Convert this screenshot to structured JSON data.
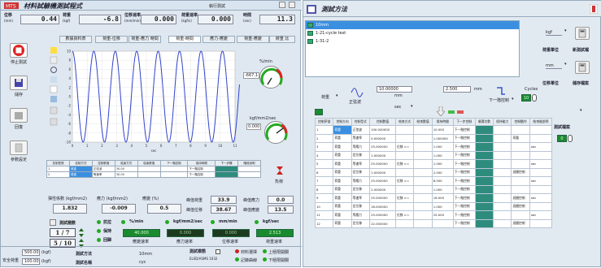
{
  "left": {
    "title": "材料試驗機測試程式",
    "machine_label": "執行測試",
    "readouts": [
      {
        "label": "位移",
        "unit": "(mm)",
        "value": "0.44"
      },
      {
        "label": "荷重",
        "unit": "(kgf)",
        "value": "-6.8"
      },
      {
        "label": "位移速率",
        "unit": "(mm/min)",
        "value": "0.000"
      },
      {
        "label": "荷重速率",
        "unit": "(kgf/s)",
        "value": "0.000"
      },
      {
        "label": "時間",
        "unit": "(sec)",
        "value": "11.3"
      }
    ],
    "side_buttons": [
      {
        "label": "停止測試"
      },
      {
        "label": "儲存"
      },
      {
        "label": "回復"
      },
      {
        "label": "參數設定"
      }
    ],
    "tabs": [
      "數據資料表",
      "荷重-位移",
      "荷重-應力 時間",
      "荷重-時間",
      "應力-應變",
      "荷重-應變",
      "荷重 比"
    ],
    "chart_data": {
      "type": "line",
      "xlabel": "sec",
      "xticks": [
        "0",
        "1",
        "2",
        "3",
        "4",
        "5",
        "6",
        "7",
        "8",
        "9",
        "10",
        "11"
      ],
      "yticks": [
        "-10",
        "-8",
        "-6",
        "-4",
        "-2",
        "0",
        "2",
        "4",
        "6",
        "8",
        "10"
      ],
      "series": [
        {
          "amplitude": 10,
          "period_sec": 1.45,
          "x_max": 11.3
        }
      ],
      "color": "#3344cc"
    },
    "gauge1": {
      "unit": "%/min",
      "value": "-667.1"
    },
    "gauge2": {
      "unit": "kgf/mm2/sec",
      "value": "0.000"
    },
    "mini_table": {
      "headers": [
        "控制型態",
        "控制方式",
        "控制數值",
        "結束方式",
        "結束數值",
        "下一階控制",
        "保持時間",
        "下一步驟",
        "階段說明"
      ],
      "rows": [
        [
          "1",
          "荷重",
          "正弦波",
          "30.00",
          "",
          "",
          "下一階控制",
          "",
          ""
        ],
        [
          "2",
          "荷重",
          "等速率",
          "30.00",
          "",
          "",
          "下一階控制",
          "",
          ""
        ]
      ]
    },
    "load_btn": "負荷",
    "stats1": [
      {
        "label": "彈性係數 (kgf/mm2)",
        "value": "1.832"
      },
      {
        "label": "應力 (kgf/mm2)",
        "value": "-0.009"
      },
      {
        "label": "應變 (%)",
        "value": "0.5"
      }
    ],
    "stats2": [
      {
        "label": "峰值荷重",
        "value": "33.9"
      },
      {
        "label": "峰值位移",
        "value": "38.67"
      }
    ],
    "stats3": [
      {
        "label": "峰值應力",
        "value": "0.0"
      },
      {
        "label": "峰值應變",
        "value": "13.5"
      }
    ],
    "cycle": {
      "label": "測試圈數",
      "current": "1",
      "total": "7",
      "step": "5",
      "step_total": "10"
    },
    "indicators": [
      {
        "label": "抗拉"
      },
      {
        "label": "保持"
      },
      {
        "label": "回歸"
      }
    ],
    "bottom_meters": [
      {
        "unit": "%/min",
        "value": "40.000",
        "caption": "應變速率"
      },
      {
        "unit": "kgf/mm2/sec",
        "value": "0.000",
        "caption": "應力速率"
      },
      {
        "unit": "mm/min",
        "value": "0.000",
        "caption": "位移速率"
      },
      {
        "unit": "kgf/sec",
        "value": "2.513",
        "caption": "荷重速率"
      }
    ],
    "footer": {
      "safe_label": "安全荷重",
      "field1_value": "500.00",
      "field1_unit": "(kgf)",
      "field2_value": "100.00",
      "field2_unit": "(kgf)",
      "method_label": "測試方法",
      "method_value": "測試名稱",
      "mm_label": "10mm",
      "speed_label": "cyc",
      "mode_label": "測試模態",
      "mode_value": "ELSD/ASMS 1032",
      "opt1": "材料選擇",
      "opt2": "記錄曲線",
      "opt3": "上極限開關",
      "opt4": "下極限開關"
    }
  },
  "right": {
    "title": "測試方法",
    "methods": [
      "10mm",
      "1-21-cycle test",
      "1-31-2"
    ],
    "unit_force": "kgf",
    "unit_force_label": "荷重單位",
    "unit_disp": "mm",
    "unit_disp_label": "位移單位",
    "btn_new": "新測試檔",
    "btn_save": "儲存檔案",
    "ctrl": {
      "load_label": "荷重",
      "wave_label": "正弦波",
      "field_a": "10.00000",
      "unit_a": "mm",
      "unit_sec": "sec",
      "field_b": "2.500",
      "unit_b": "mm",
      "next_label": "下一階控制",
      "cycles_label": "Cycles",
      "cycles_value": "10"
    },
    "side_label": "測試檔案",
    "side_value": "0",
    "table": {
      "headers": [
        "控制序號",
        "控制方向",
        "控制型式",
        "控制數值",
        "結束方式",
        "結束數值",
        "保持時間",
        "下一步控制",
        "循環次數",
        "保持能力",
        "控制動作",
        "結束後說明"
      ],
      "rows": [
        [
          "1",
          "荷重",
          "正弦波",
          "100.000000",
          "",
          "",
          "10.000",
          "下一階控制",
          "",
          "",
          "",
          ""
        ],
        [
          "2",
          "荷重",
          "等速率",
          "0.000000",
          "",
          "",
          "1.000000",
          "下一階控制",
          "",
          "",
          "荷載",
          ""
        ],
        [
          "3",
          "荷重",
          "等應力",
          "25.000000",
          "位移 >=",
          "",
          "1.000",
          "下一階控制",
          "",
          "",
          "",
          "sec"
        ],
        [
          "4",
          "荷重",
          "定位移",
          "1.000000",
          "",
          "",
          "1.000",
          "下一階控制",
          "",
          "",
          "",
          ""
        ],
        [
          "5",
          "荷重",
          "等速率",
          "25.000000",
          "位移 >=",
          "",
          "1.000",
          "下一階控制",
          "",
          "",
          "",
          "sec"
        ],
        [
          "6",
          "荷重",
          "定位移",
          "1.000000",
          "",
          "",
          "2.000",
          "下一階控制",
          "",
          "",
          "迴圈控制",
          ""
        ],
        [
          "7",
          "荷重",
          "等應力",
          "25.000000",
          "位移 >=",
          "",
          "8.500",
          "下一階控制",
          "",
          "",
          "",
          "sec"
        ],
        [
          "8",
          "荷重",
          "定位移",
          "2.000000",
          "",
          "",
          "1.000",
          "下一階控制",
          "",
          "",
          "",
          ""
        ],
        [
          "9",
          "荷重",
          "等速率",
          "25.000000",
          "位移 >=",
          "",
          "16.000",
          "下一階控制",
          "",
          "",
          "迴圈控制",
          "sec"
        ],
        [
          "10",
          "荷重",
          "定位移",
          "16.000000",
          "",
          "",
          "1.000",
          "下一階控制",
          "",
          "",
          "迴圈控制",
          ""
        ],
        [
          "11",
          "荷重",
          "等應力",
          "25.000000",
          "位移 >=",
          "",
          "25.000",
          "下一階控制",
          "",
          "",
          "",
          "sec"
        ],
        [
          "12",
          "荷重",
          "定位移",
          "22.000000",
          "",
          "",
          "",
          "下一階控制",
          "",
          "",
          "迴圈控制",
          ""
        ]
      ]
    }
  }
}
